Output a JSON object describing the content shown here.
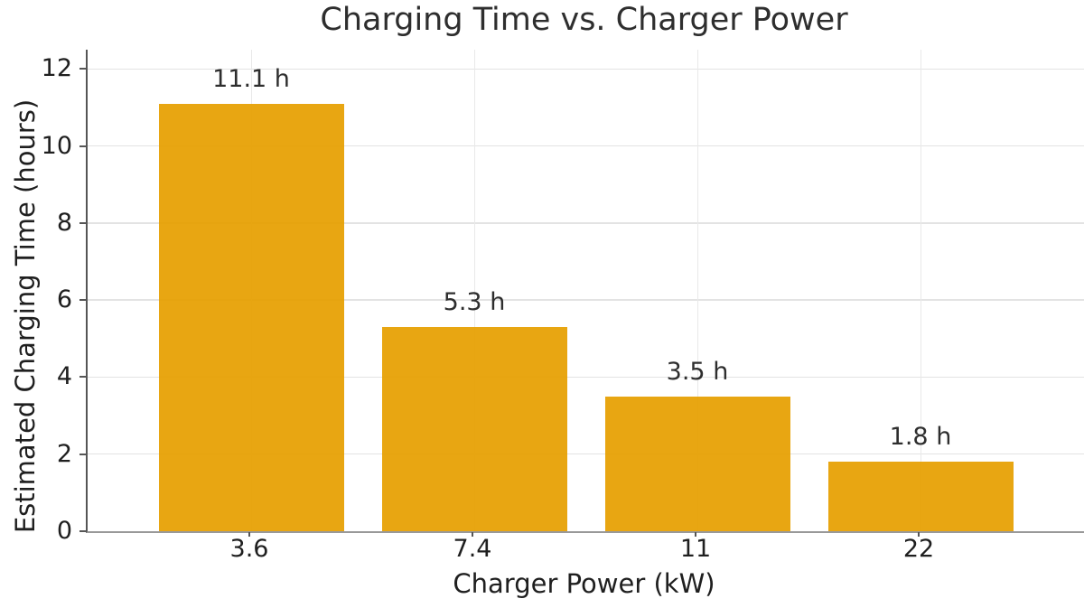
{
  "chart_data": {
    "type": "bar",
    "title": "Charging Time vs. Charger Power",
    "xlabel": "Charger Power (kW)",
    "ylabel": "Estimated Charging Time (hours)",
    "categories": [
      "3.6",
      "7.4",
      "11",
      "22"
    ],
    "values": [
      11.1,
      5.3,
      3.5,
      1.8
    ],
    "bar_labels": [
      "11.1 h",
      "5.3 h",
      "3.5 h",
      "1.8 h"
    ],
    "yticks": [
      0,
      2,
      4,
      6,
      8,
      10,
      12
    ],
    "ylim": [
      0,
      12.5
    ],
    "grid": true,
    "legend": false,
    "colors": {
      "bar": "#E69F00",
      "grid_horizontal": "#e3e3e3",
      "grid_vertical": "#e9e9e9",
      "spine_left": "#555555",
      "spine_bottom": "#999999",
      "tick_mark": "#555555",
      "title_text": "#2e2e2e",
      "axis_text": "#1f1f1f",
      "bar_label_text": "#2e2e2e"
    }
  }
}
